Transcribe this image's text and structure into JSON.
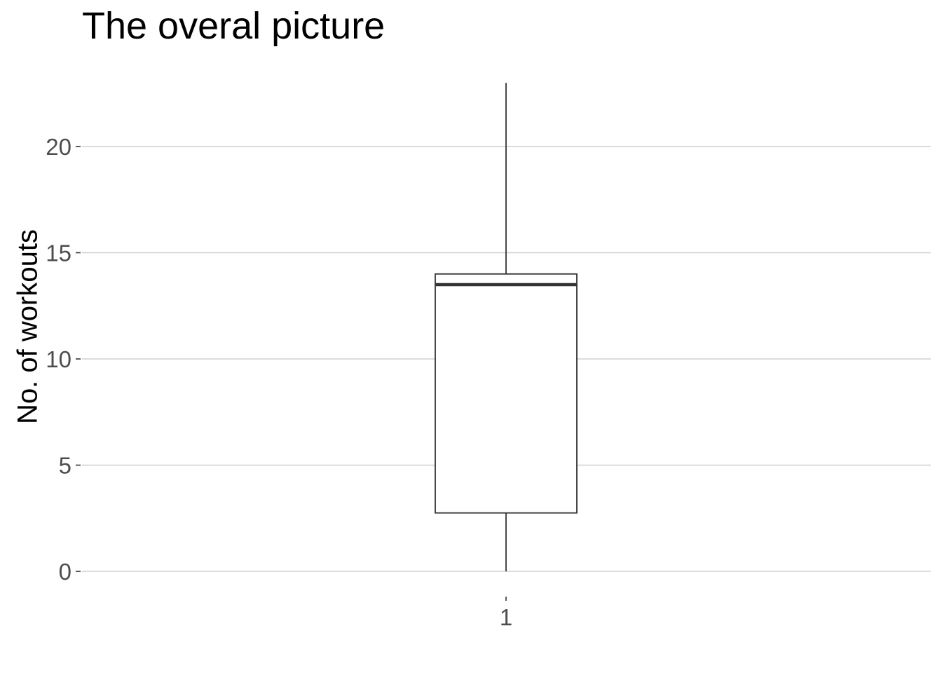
{
  "chart_data": {
    "type": "boxplot",
    "title": "The overal picture",
    "xlabel": "",
    "ylabel": "No. of workouts",
    "categories": [
      "1"
    ],
    "boxes": [
      {
        "category": "1",
        "min": 0,
        "q1": 2.75,
        "median": 13.5,
        "q3": 14,
        "max": 23
      }
    ],
    "y_ticks": [
      0,
      5,
      10,
      15,
      20
    ],
    "ylim": [
      0,
      23
    ],
    "grid": "horizontal major gridlines",
    "legend": "none",
    "colors": {
      "gridline": "#d0d0d0",
      "box_stroke": "#333333",
      "box_fill": "#ffffff",
      "tick_label": "#4d4d4d"
    }
  }
}
